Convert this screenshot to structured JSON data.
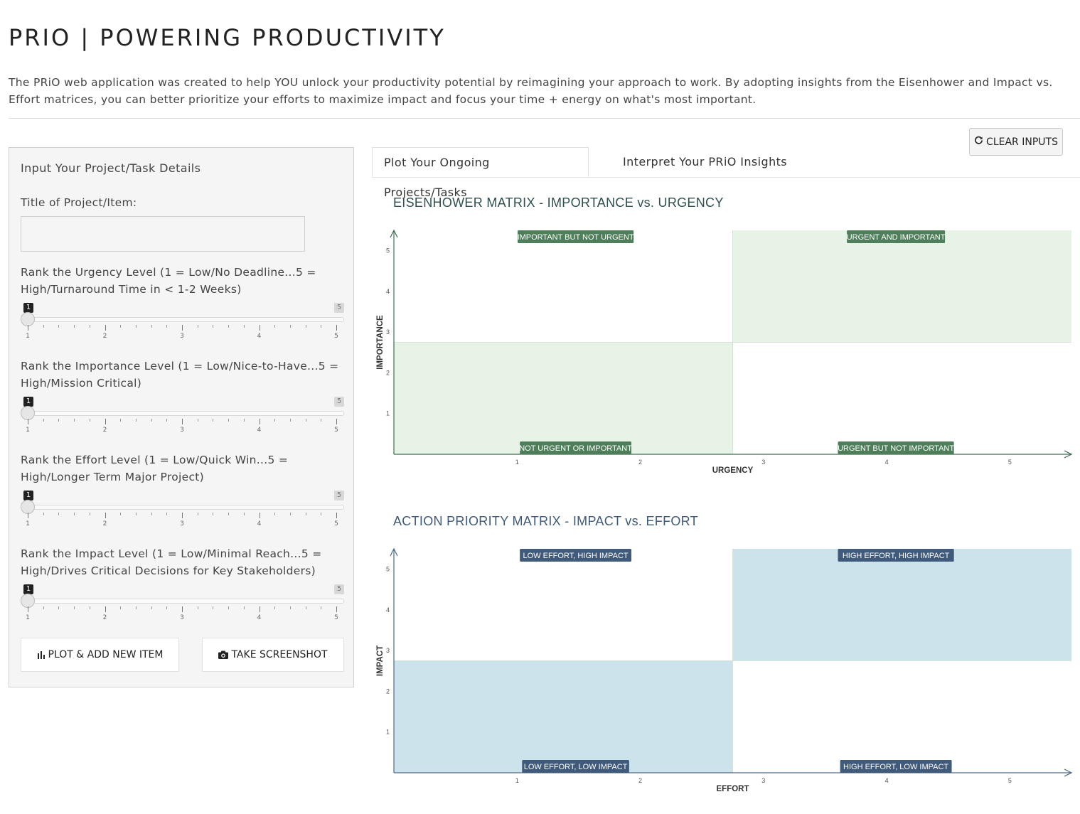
{
  "header": {
    "title": "PRIO | POWERING PRODUCTIVITY",
    "intro": "The PRiO web application was created to help YOU unlock your productivity potential by reimagining your approach to work. By adopting insights from the Eisenhower and Impact vs. Effort matrices, you can better prioritize your efforts to maximize impact and focus your time + energy on what's most important."
  },
  "toolbar": {
    "clear_label": "CLEAR INPUTS",
    "clear_icon": "refresh-icon"
  },
  "sidebar": {
    "heading": "Input Your Project/Task Details",
    "title_label": "Title of Project/Item:",
    "title_value": "",
    "sliders": [
      {
        "label": "Rank the Urgency Level (1 = Low/No Deadline...5 = High/Turnaround Time in < 1-2 Weeks)",
        "value": 1,
        "min": 1,
        "max": 5,
        "min_badge": "1",
        "max_badge": "5"
      },
      {
        "label": "Rank the Importance Level (1 = Low/Nice-to-Have...5 = High/Mission Critical)",
        "value": 1,
        "min": 1,
        "max": 5,
        "min_badge": "1",
        "max_badge": "5"
      },
      {
        "label": "Rank the Effort Level (1 = Low/Quick Win...5 = High/Longer Term Major Project)",
        "value": 1,
        "min": 1,
        "max": 5,
        "min_badge": "1",
        "max_badge": "5"
      },
      {
        "label": "Rank the Impact Level (1 = Low/Minimal Reach...5 = High/Drives Critical Decisions for Key Stakeholders)",
        "value": 1,
        "min": 1,
        "max": 5,
        "min_badge": "1",
        "max_badge": "5"
      }
    ],
    "plot_label": "PLOT & ADD NEW ITEM",
    "plot_icon": "bar-chart-icon",
    "screenshot_label": "TAKE SCREENSHOT",
    "screenshot_icon": "camera-icon"
  },
  "tabs": [
    {
      "label": "Plot Your Ongoing Projects/Tasks",
      "active": true
    },
    {
      "label": "Interpret Your PRiO Insights",
      "active": false
    }
  ],
  "chart_data": [
    {
      "type": "scatter",
      "title": "EISENHOWER MATRIX - IMPORTANCE vs. URGENCY",
      "xlabel": "URGENCY",
      "ylabel": "IMPORTANCE",
      "xlim": [
        0,
        5.5
      ],
      "ylim": [
        0,
        5.5
      ],
      "xticks": [
        "1",
        "2",
        "3",
        "4",
        "5"
      ],
      "yticks": [
        "1",
        "2",
        "3",
        "4",
        "5"
      ],
      "points": [],
      "quadrant_labels": {
        "top_left": "IMPORTANT BUT NOT URGENT",
        "top_right": "URGENT AND IMPORTANT",
        "bottom_left": "NOT URGENT OR IMPORTANT",
        "bottom_right": "URGENT BUT NOT IMPORTANT"
      },
      "colors": {
        "fill": "#e8f3e8",
        "label_bg": "#4e7f5a",
        "title": "#2f4f4f",
        "axis": "#3c6e50"
      }
    },
    {
      "type": "scatter",
      "title": "ACTION PRIORITY MATRIX - IMPACT vs. EFFORT",
      "xlabel": "EFFORT",
      "ylabel": "IMPACT",
      "xlim": [
        0,
        5.5
      ],
      "ylim": [
        0,
        5.5
      ],
      "xticks": [
        "1",
        "2",
        "3",
        "4",
        "5"
      ],
      "yticks": [
        "1",
        "2",
        "3",
        "4",
        "5"
      ],
      "points": [],
      "quadrant_labels": {
        "top_left": "LOW EFFORT, HIGH IMPACT",
        "top_right": "HIGH EFFORT, HIGH IMPACT",
        "bottom_left": "LOW EFFORT, LOW IMPACT",
        "bottom_right": "HIGH EFFORT, LOW IMPACT"
      },
      "colors": {
        "fill": "#cde3ec",
        "label_bg": "#3f5a7a",
        "title": "#3f5a7a",
        "axis": "#4a6a8a"
      }
    }
  ]
}
